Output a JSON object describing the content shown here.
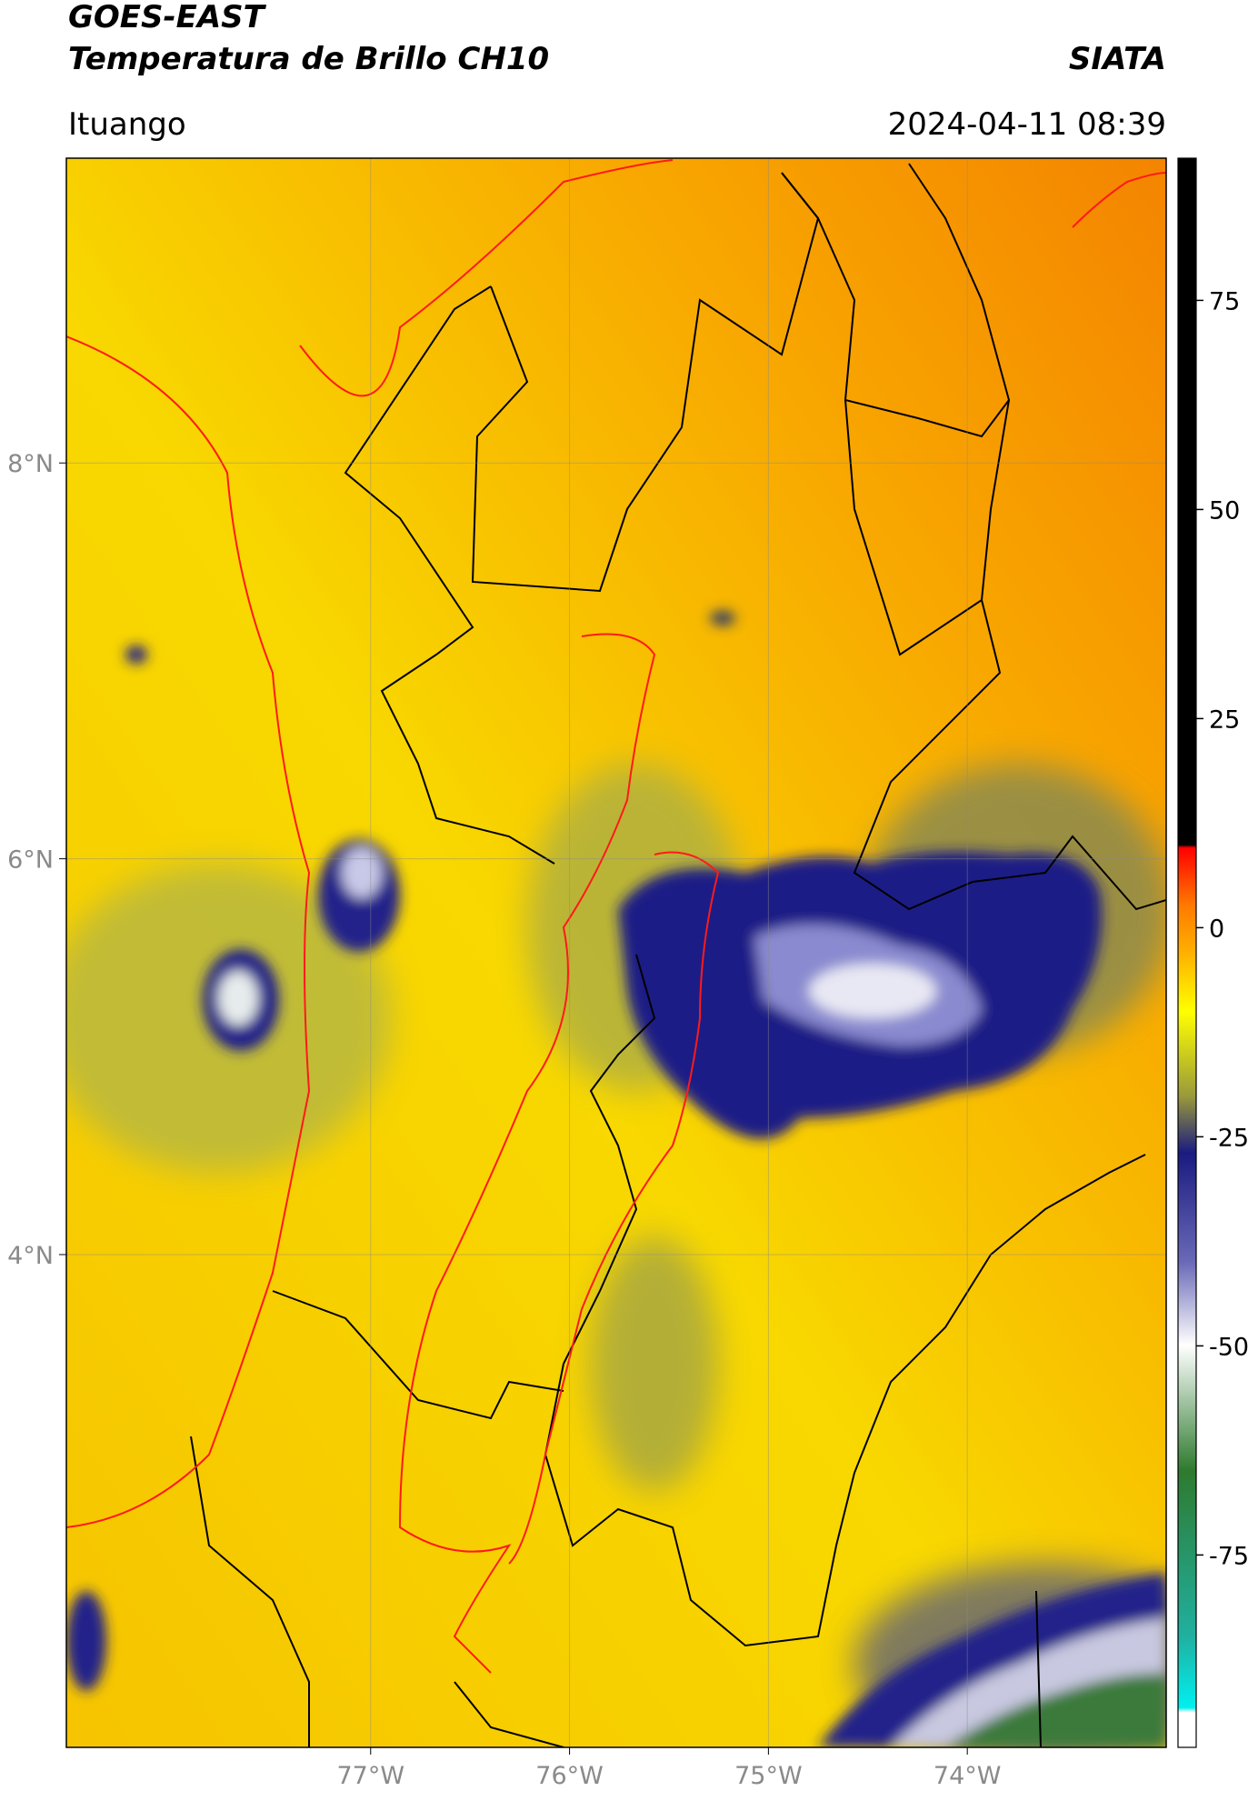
{
  "header": {
    "satellite": "GOES-EAST",
    "product": "Temperatura de Brillo CH10",
    "agency": "SIATA",
    "region": "Ituango",
    "datetime": "2024-04-11 08:39"
  },
  "map": {
    "xlim": [
      -78.53,
      -73.0
    ],
    "ylim": [
      1.51,
      9.54
    ],
    "xticks": [
      {
        "value": -77,
        "label": "77°W"
      },
      {
        "value": -76,
        "label": "76°W"
      },
      {
        "value": -75,
        "label": "75°W"
      },
      {
        "value": -74,
        "label": "74°W"
      }
    ],
    "yticks": [
      {
        "value": 8,
        "label": "8°N"
      },
      {
        "value": 6,
        "label": "6°N"
      },
      {
        "value": 4,
        "label": "4°N"
      }
    ],
    "grid": true
  },
  "colorbar": {
    "lim": [
      -98,
      92
    ],
    "ticks": [
      75,
      50,
      25,
      0,
      -25,
      -50,
      -75
    ]
  }
}
